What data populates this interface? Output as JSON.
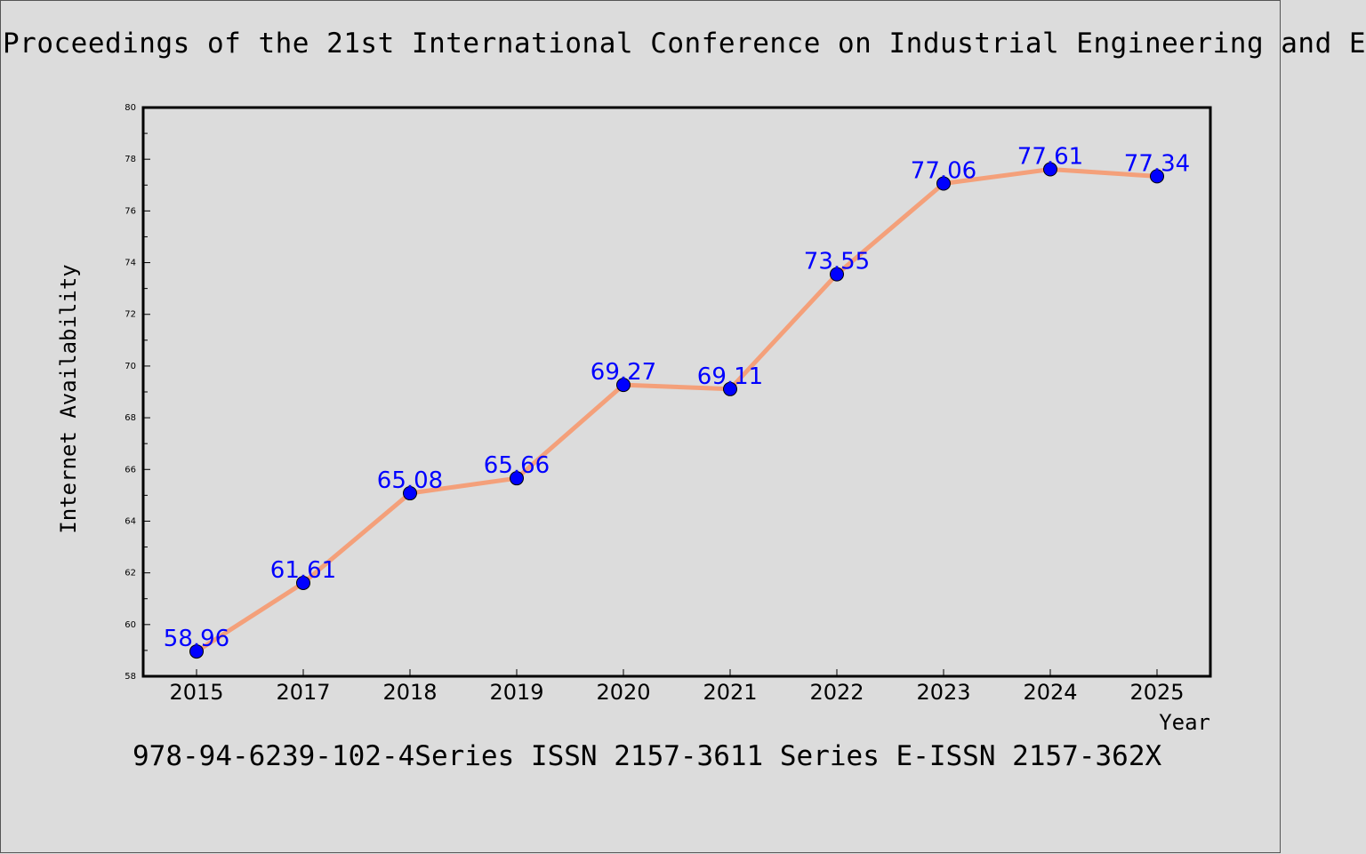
{
  "header": {
    "title": "Proceedings of the 21st International Conference on Industrial Engineering and E"
  },
  "footer": {
    "text": "978-94-6239-102-4Series ISSN 2157-3611 Series E-ISSN 2157-362X"
  },
  "chart_data": {
    "type": "line",
    "title": "",
    "xlabel": "Year",
    "ylabel": "Internet Availability",
    "categories": [
      "2015",
      "2017",
      "2018",
      "2019",
      "2020",
      "2021",
      "2022",
      "2023",
      "2024",
      "2025"
    ],
    "series": [
      {
        "values": [
          58.96,
          61.61,
          65.08,
          65.66,
          69.27,
          69.11,
          73.55,
          77.06,
          77.61,
          77.34
        ],
        "labels": [
          "58.96",
          "61.61",
          "65.08",
          "65.66",
          "69.27",
          "69.11",
          "73.55",
          "77.06",
          "77.61",
          "77.34"
        ]
      }
    ],
    "ylim": [
      58,
      80
    ],
    "yticks": [
      "58",
      "60",
      "62",
      "64",
      "66",
      "68",
      "70",
      "72",
      "74",
      "76",
      "78",
      "80"
    ],
    "grid": false,
    "colors": {
      "line": "#f4a07a",
      "marker": "#0000ff",
      "labels": "#0000ff",
      "background": "#dcdcdc"
    }
  }
}
